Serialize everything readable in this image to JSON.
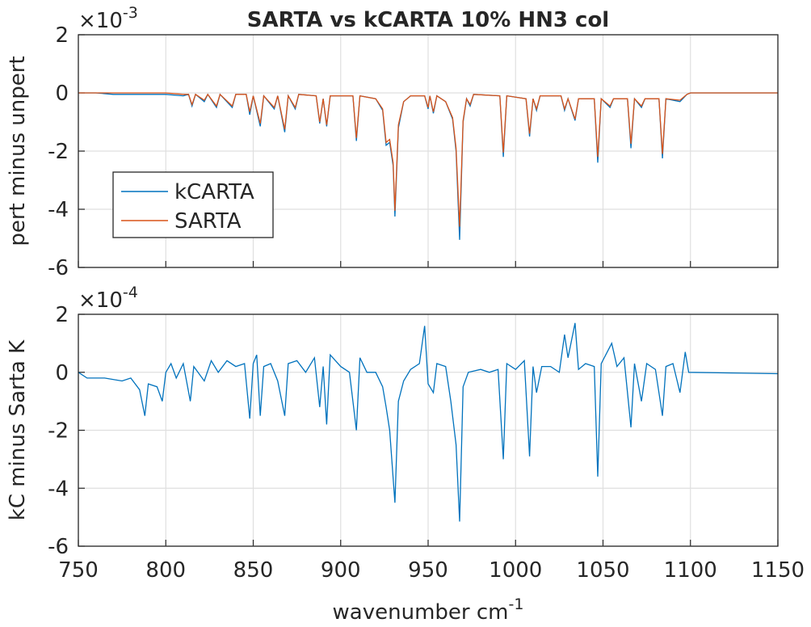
{
  "chart_data": [
    {
      "type": "line",
      "title": "SARTA vs kCARTA 10% HN3 col",
      "ylabel": "pert minus unpert",
      "y_multiplier": "×10",
      "y_multiplier_exp": "-3",
      "xlim": [
        750,
        1150
      ],
      "xticks": [
        750,
        800,
        850,
        900,
        950,
        1000,
        1050,
        1100,
        1150
      ],
      "ylim": [
        -6,
        2
      ],
      "yticks": [
        -6,
        -4,
        -2,
        0,
        2
      ],
      "grid": true,
      "legend": "upper-left",
      "x": [
        750,
        760,
        770,
        780,
        790,
        800,
        810,
        813,
        815,
        817,
        822,
        824,
        829,
        831,
        838,
        840,
        846,
        848,
        850,
        854,
        856,
        862,
        864,
        868,
        870,
        874,
        876,
        886,
        888,
        890,
        892,
        894,
        907,
        909,
        911,
        920,
        924,
        926,
        928,
        930,
        931,
        933,
        936,
        940,
        948,
        950,
        951,
        953,
        955,
        960,
        964,
        966,
        968,
        970,
        972,
        974,
        976,
        991,
        993,
        995,
        1006,
        1008,
        1010,
        1012,
        1014,
        1026,
        1028,
        1030,
        1034,
        1036,
        1045,
        1047,
        1049,
        1054,
        1056,
        1064,
        1066,
        1068,
        1072,
        1074,
        1082,
        1084,
        1086,
        1094,
        1098,
        1100,
        1150
      ],
      "series": [
        {
          "name": "kCARTA",
          "color": "#0072bd",
          "values": [
            0,
            0,
            -0.05,
            -0.05,
            -0.05,
            -0.05,
            -0.1,
            -0.05,
            -0.45,
            -0.05,
            -0.3,
            -0.05,
            -0.5,
            -0.05,
            -0.5,
            -0.05,
            -0.05,
            -0.75,
            -0.1,
            -1.15,
            -0.1,
            -0.55,
            -0.1,
            -1.35,
            -0.1,
            -0.55,
            -0.05,
            -0.1,
            -1.05,
            -0.2,
            -1.15,
            -0.1,
            -0.1,
            -1.65,
            -0.1,
            -0.2,
            -0.6,
            -1.8,
            -1.7,
            -2.5,
            -4.25,
            -1.2,
            -0.3,
            -0.1,
            -0.1,
            -0.55,
            -0.1,
            -0.7,
            -0.1,
            -0.3,
            -0.9,
            -2.0,
            -5.05,
            -1.0,
            -0.2,
            -0.45,
            -0.05,
            -0.1,
            -2.2,
            -0.1,
            -0.2,
            -1.5,
            -0.2,
            -0.6,
            -0.1,
            -0.1,
            -0.6,
            -0.2,
            -0.95,
            -0.2,
            -0.2,
            -2.4,
            -0.2,
            -0.5,
            -0.2,
            -0.2,
            -1.9,
            -0.2,
            -0.5,
            -0.2,
            -0.2,
            -2.25,
            -0.2,
            -0.3,
            -0.05,
            0,
            0
          ]
        },
        {
          "name": "SARTA",
          "color": "#d95319",
          "values": [
            0,
            0,
            0,
            0,
            0,
            0,
            -0.05,
            -0.05,
            -0.4,
            -0.05,
            -0.25,
            -0.05,
            -0.45,
            -0.05,
            -0.45,
            -0.05,
            -0.05,
            -0.65,
            -0.1,
            -1.05,
            -0.1,
            -0.5,
            -0.1,
            -1.25,
            -0.1,
            -0.5,
            -0.05,
            -0.1,
            -1.0,
            -0.2,
            -1.1,
            -0.1,
            -0.1,
            -1.55,
            -0.1,
            -0.2,
            -0.55,
            -1.7,
            -1.6,
            -2.4,
            -4.05,
            -1.1,
            -0.3,
            -0.1,
            -0.1,
            -0.5,
            -0.1,
            -0.65,
            -0.1,
            -0.3,
            -0.85,
            -1.9,
            -4.6,
            -0.95,
            -0.2,
            -0.4,
            -0.05,
            -0.1,
            -2.05,
            -0.1,
            -0.2,
            -1.4,
            -0.2,
            -0.55,
            -0.1,
            -0.1,
            -0.55,
            -0.2,
            -0.9,
            -0.2,
            -0.2,
            -2.2,
            -0.2,
            -0.45,
            -0.2,
            -0.2,
            -1.75,
            -0.2,
            -0.45,
            -0.2,
            -0.2,
            -2.1,
            -0.2,
            -0.25,
            -0.05,
            0,
            0
          ]
        }
      ]
    },
    {
      "type": "line",
      "ylabel": "kC minus Sarta K",
      "xlabel": "wavenumber cm",
      "xlabel_sup": "-1",
      "y_multiplier": "×10",
      "y_multiplier_exp": "-4",
      "xlim": [
        750,
        1150
      ],
      "xticks": [
        750,
        800,
        850,
        900,
        950,
        1000,
        1050,
        1100,
        1150
      ],
      "ylim": [
        -6,
        2
      ],
      "yticks": [
        -6,
        -4,
        -2,
        0,
        2
      ],
      "grid": true,
      "x": [
        750,
        755,
        765,
        775,
        780,
        785,
        788,
        790,
        795,
        798,
        800,
        803,
        806,
        810,
        814,
        816,
        822,
        826,
        830,
        835,
        840,
        845,
        848,
        850,
        852,
        854,
        856,
        860,
        864,
        868,
        870,
        875,
        880,
        885,
        888,
        890,
        892,
        894,
        900,
        905,
        909,
        911,
        915,
        920,
        924,
        926,
        928,
        931,
        933,
        936,
        940,
        945,
        948,
        950,
        953,
        955,
        960,
        963,
        966,
        968,
        970,
        973,
        980,
        985,
        990,
        993,
        995,
        1000,
        1005,
        1008,
        1010,
        1012,
        1015,
        1020,
        1025,
        1028,
        1030,
        1034,
        1036,
        1040,
        1045,
        1047,
        1049,
        1055,
        1058,
        1062,
        1066,
        1068,
        1072,
        1075,
        1080,
        1084,
        1086,
        1090,
        1094,
        1097,
        1099,
        1150
      ],
      "series": [
        {
          "name": "kCARTA",
          "color": "#0072bd",
          "values": [
            0,
            -0.2,
            -0.2,
            -0.3,
            -0.2,
            -0.6,
            -1.5,
            -0.4,
            -0.5,
            -1.0,
            0,
            0.3,
            -0.2,
            0.3,
            -1.0,
            0.2,
            -0.3,
            0.4,
            0,
            0.4,
            0.2,
            0.3,
            -1.6,
            0.3,
            0.6,
            -1.5,
            0.2,
            0.3,
            -0.3,
            -1.5,
            0.3,
            0.4,
            0,
            0.5,
            -1.2,
            0.2,
            -1.8,
            0.6,
            0.2,
            0,
            -2.0,
            0.5,
            0,
            0,
            -0.5,
            -1.2,
            -2.0,
            -4.5,
            -1.0,
            -0.3,
            0.1,
            0.3,
            1.6,
            -0.4,
            -0.7,
            0.3,
            0.2,
            -1.0,
            -2.5,
            -5.15,
            -0.5,
            0,
            0.1,
            0,
            0.1,
            -3.0,
            0.3,
            0.1,
            0.4,
            -2.9,
            0.2,
            -0.7,
            0.2,
            0.2,
            0,
            1.3,
            0.5,
            1.7,
            0.1,
            0.3,
            0.2,
            -3.6,
            0.3,
            1.0,
            0.2,
            0.5,
            -1.9,
            0.3,
            -1.0,
            0.3,
            0.1,
            -1.5,
            0.2,
            0.3,
            -0.7,
            0.7,
            0,
            -0.05
          ]
        }
      ]
    }
  ]
}
